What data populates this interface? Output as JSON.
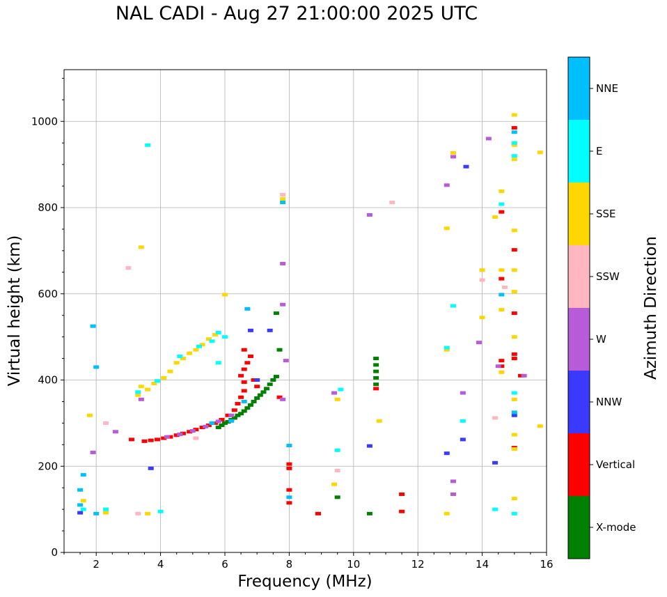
{
  "title": "NAL CADI - Aug 27 21:00:00 2025 UTC",
  "chart_data": {
    "type": "scatter",
    "title": "NAL CADI - Aug 27 21:00:00 2025 UTC",
    "xlabel": "Frequency (MHz)",
    "ylabel": "Virtual height (km)",
    "xlim": [
      1,
      16
    ],
    "ylim": [
      0,
      1120
    ],
    "xticks": [
      2,
      4,
      6,
      8,
      10,
      12,
      14,
      16
    ],
    "yticks": [
      0,
      200,
      400,
      600,
      800,
      1000
    ],
    "grid": true,
    "colorbar": {
      "title": "Azimuth Direction",
      "categories": [
        {
          "name": "X-mode",
          "color": "#008000"
        },
        {
          "name": "Vertical",
          "color": "#ff0000"
        },
        {
          "name": "NNW",
          "color": "#3a3aff"
        },
        {
          "name": "W",
          "color": "#b85bd8"
        },
        {
          "name": "SSW",
          "color": "#ffb6c1"
        },
        {
          "name": "SSE",
          "color": "#ffd700"
        },
        {
          "name": "E",
          "color": "#00ffff"
        },
        {
          "name": "NNE",
          "color": "#00bfff"
        }
      ]
    },
    "series": [
      {
        "name": "X-mode",
        "points": [
          [
            5.8,
            290
          ],
          [
            5.9,
            295
          ],
          [
            6.0,
            300
          ],
          [
            6.1,
            303
          ],
          [
            6.2,
            308
          ],
          [
            6.3,
            312
          ],
          [
            6.4,
            318
          ],
          [
            6.5,
            322
          ],
          [
            6.6,
            328
          ],
          [
            6.7,
            335
          ],
          [
            6.8,
            342
          ],
          [
            6.9,
            350
          ],
          [
            7.0,
            358
          ],
          [
            7.1,
            365
          ],
          [
            7.2,
            372
          ],
          [
            7.3,
            380
          ],
          [
            7.4,
            390
          ],
          [
            7.5,
            400
          ],
          [
            7.6,
            408
          ],
          [
            7.7,
            470
          ],
          [
            7.6,
            555
          ],
          [
            10.7,
            390
          ],
          [
            10.7,
            405
          ],
          [
            10.7,
            420
          ],
          [
            10.7,
            435
          ],
          [
            10.7,
            450
          ],
          [
            9.5,
            128
          ],
          [
            10.5,
            90
          ]
        ]
      },
      {
        "name": "Vertical",
        "points": [
          [
            3.1,
            262
          ],
          [
            3.5,
            258
          ],
          [
            3.7,
            260
          ],
          [
            3.9,
            262
          ],
          [
            4.1,
            265
          ],
          [
            4.3,
            268
          ],
          [
            4.5,
            272
          ],
          [
            4.7,
            276
          ],
          [
            4.9,
            280
          ],
          [
            5.1,
            285
          ],
          [
            5.3,
            290
          ],
          [
            5.5,
            295
          ],
          [
            5.7,
            300
          ],
          [
            5.9,
            308
          ],
          [
            6.1,
            318
          ],
          [
            6.3,
            330
          ],
          [
            6.4,
            345
          ],
          [
            6.5,
            360
          ],
          [
            6.6,
            375
          ],
          [
            6.6,
            395
          ],
          [
            6.5,
            410
          ],
          [
            6.6,
            425
          ],
          [
            6.7,
            440
          ],
          [
            6.8,
            455
          ],
          [
            6.6,
            470
          ],
          [
            6.9,
            400
          ],
          [
            7.0,
            385
          ],
          [
            7.7,
            360
          ],
          [
            8.0,
            205
          ],
          [
            8.0,
            195
          ],
          [
            8.0,
            145
          ],
          [
            8.0,
            115
          ],
          [
            8.9,
            90
          ],
          [
            10.7,
            380
          ],
          [
            11.5,
            95
          ],
          [
            11.5,
            135
          ],
          [
            14.6,
            635
          ],
          [
            14.6,
            445
          ],
          [
            14.6,
            432
          ],
          [
            15.0,
            985
          ],
          [
            15.0,
            555
          ],
          [
            15.0,
            450
          ],
          [
            15.0,
            243
          ],
          [
            15.0,
            460
          ],
          [
            15.0,
            702
          ],
          [
            15.2,
            410
          ],
          [
            14.6,
            790
          ]
        ]
      },
      {
        "name": "NNW",
        "points": [
          [
            3.7,
            195
          ],
          [
            6.8,
            515
          ],
          [
            7.4,
            515
          ],
          [
            7.0,
            400
          ],
          [
            10.5,
            247
          ],
          [
            12.9,
            230
          ],
          [
            13.4,
            262
          ],
          [
            13.5,
            895
          ],
          [
            15.0,
            318
          ],
          [
            1.5,
            92
          ],
          [
            14.4,
            208
          ]
        ]
      },
      {
        "name": "W",
        "points": [
          [
            4.2,
            268
          ],
          [
            4.6,
            274
          ],
          [
            5.0,
            282
          ],
          [
            5.4,
            292
          ],
          [
            5.8,
            304
          ],
          [
            6.2,
            318
          ],
          [
            3.4,
            355
          ],
          [
            7.8,
            575
          ],
          [
            7.9,
            445
          ],
          [
            7.8,
            355
          ],
          [
            9.4,
            370
          ],
          [
            10.5,
            783
          ],
          [
            13.1,
            135
          ],
          [
            13.1,
            165
          ],
          [
            13.4,
            370
          ],
          [
            13.9,
            487
          ],
          [
            14.2,
            960
          ],
          [
            14.5,
            432
          ],
          [
            15.3,
            410
          ],
          [
            12.9,
            852
          ],
          [
            13.1,
            918
          ],
          [
            2.6,
            280
          ],
          [
            1.9,
            232
          ],
          [
            7.8,
            670
          ]
        ]
      },
      {
        "name": "SSW",
        "points": [
          [
            2.3,
            300
          ],
          [
            3.0,
            660
          ],
          [
            9.5,
            190
          ],
          [
            11.2,
            812
          ],
          [
            14.0,
            632
          ],
          [
            14.4,
            312
          ],
          [
            14.7,
            615
          ],
          [
            7.8,
            830
          ],
          [
            5.1,
            265
          ],
          [
            3.3,
            90
          ]
        ]
      },
      {
        "name": "SSE",
        "points": [
          [
            3.3,
            365
          ],
          [
            3.4,
            385
          ],
          [
            3.6,
            378
          ],
          [
            3.8,
            392
          ],
          [
            4.1,
            405
          ],
          [
            4.3,
            420
          ],
          [
            4.5,
            440
          ],
          [
            4.7,
            450
          ],
          [
            4.9,
            462
          ],
          [
            5.1,
            470
          ],
          [
            5.3,
            482
          ],
          [
            5.5,
            495
          ],
          [
            5.7,
            505
          ],
          [
            6.0,
            598
          ],
          [
            3.4,
            708
          ],
          [
            1.8,
            318
          ],
          [
            3.6,
            90
          ],
          [
            2.3,
            92
          ],
          [
            1.6,
            120
          ],
          [
            9.5,
            355
          ],
          [
            9.4,
            158
          ],
          [
            10.8,
            305
          ],
          [
            12.9,
            90
          ],
          [
            12.9,
            470
          ],
          [
            12.9,
            752
          ],
          [
            13.1,
            927
          ],
          [
            14.0,
            655
          ],
          [
            14.0,
            545
          ],
          [
            14.4,
            778
          ],
          [
            14.6,
            838
          ],
          [
            14.6,
            563
          ],
          [
            14.6,
            418
          ],
          [
            14.6,
            655
          ],
          [
            15.0,
            1015
          ],
          [
            15.0,
            945
          ],
          [
            15.0,
            912
          ],
          [
            15.0,
            747
          ],
          [
            15.0,
            655
          ],
          [
            15.0,
            605
          ],
          [
            15.0,
            500
          ],
          [
            15.0,
            355
          ],
          [
            15.0,
            273
          ],
          [
            15.0,
            240
          ],
          [
            15.0,
            125
          ],
          [
            15.8,
            928
          ],
          [
            15.8,
            293
          ],
          [
            7.8,
            820
          ]
        ]
      },
      {
        "name": "E",
        "points": [
          [
            3.6,
            945
          ],
          [
            3.3,
            372
          ],
          [
            3.9,
            398
          ],
          [
            4.6,
            455
          ],
          [
            5.2,
            478
          ],
          [
            5.6,
            490
          ],
          [
            5.8,
            510
          ],
          [
            6.0,
            500
          ],
          [
            5.8,
            440
          ],
          [
            4.0,
            95
          ],
          [
            1.6,
            100
          ],
          [
            2.3,
            100
          ],
          [
            9.6,
            378
          ],
          [
            9.5,
            237
          ],
          [
            13.1,
            572
          ],
          [
            13.4,
            305
          ],
          [
            14.4,
            100
          ],
          [
            14.6,
            808
          ],
          [
            15.0,
            950
          ],
          [
            15.0,
            920
          ],
          [
            15.0,
            370
          ],
          [
            15.0,
            90
          ],
          [
            12.9,
            475
          ]
        ]
      },
      {
        "name": "NNE",
        "points": [
          [
            1.5,
            145
          ],
          [
            1.6,
            180
          ],
          [
            1.5,
            110
          ],
          [
            1.9,
            525
          ],
          [
            2.0,
            430
          ],
          [
            2.0,
            90
          ],
          [
            6.7,
            565
          ],
          [
            8.0,
            248
          ],
          [
            7.8,
            812
          ],
          [
            8.0,
            128
          ],
          [
            15.0,
            325
          ],
          [
            14.6,
            598
          ],
          [
            15.0,
            975
          ],
          [
            6.6,
            350
          ],
          [
            6.2,
            305
          ],
          [
            5.6,
            300
          ]
        ]
      }
    ]
  }
}
